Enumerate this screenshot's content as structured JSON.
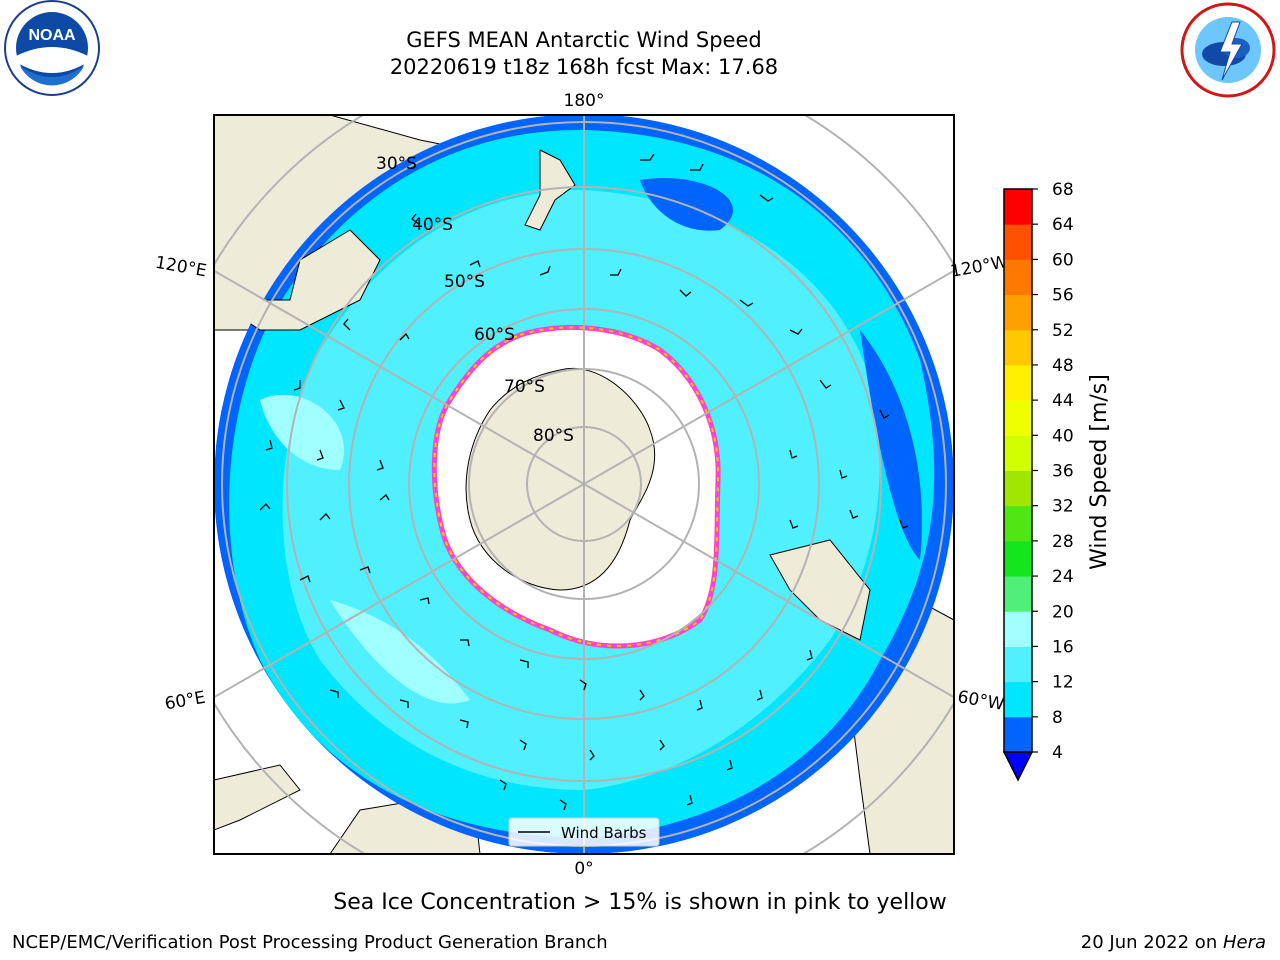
{
  "header": {
    "title_line1": "GEFS MEAN Antarctic Wind Speed",
    "title_line2": "20220619 t18z 168h fcst   Max: 17.68"
  },
  "logos": {
    "left": "noaa-logo",
    "left_text": "NOAA",
    "right": "nws-logo"
  },
  "map": {
    "projection": "south-polar-stereographic",
    "longitude_labels": [
      "180°",
      "120°E",
      "120°W",
      "60°E",
      "60°W",
      "0°"
    ],
    "latitude_labels": [
      "30°S",
      "40°S",
      "50°S",
      "60°S",
      "70°S",
      "80°S"
    ],
    "legend_label": "Wind Barbs"
  },
  "colorbar": {
    "label": "Wind Speed [m/s]",
    "ticks": [
      "4",
      "8",
      "12",
      "16",
      "20",
      "24",
      "28",
      "32",
      "36",
      "40",
      "44",
      "48",
      "52",
      "56",
      "60",
      "64",
      "68"
    ],
    "colors": [
      "#0064ff",
      "#00e6ff",
      "#50f0ff",
      "#a0ffff",
      "#50f078",
      "#14e61e",
      "#50e614",
      "#a0e600",
      "#d2ff00",
      "#f0ff00",
      "#fff000",
      "#ffc800",
      "#ffa000",
      "#ff7800",
      "#ff5000",
      "#ff0000"
    ],
    "extend_color": "#0000ff"
  },
  "footer": {
    "note": "Sea Ice Concentration > 15% is shown in pink to yellow",
    "credit": "NCEP/EMC/Verification Post Processing Product Generation Branch",
    "date": "20 Jun 2022 on ",
    "machine": "Hera"
  }
}
